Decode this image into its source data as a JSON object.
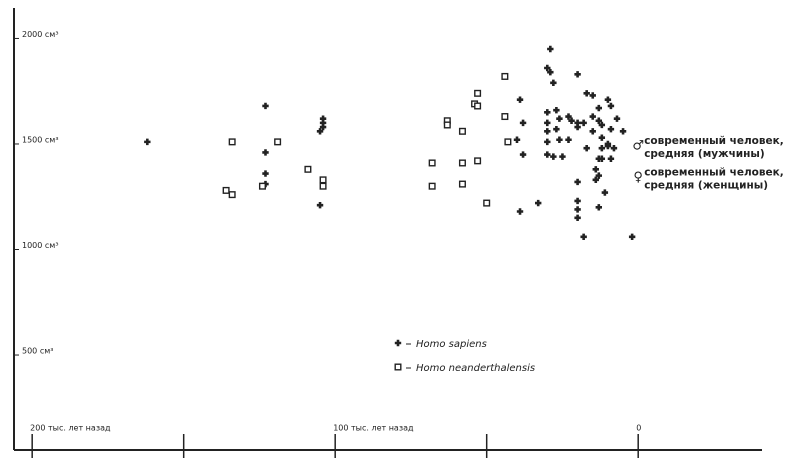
{
  "chart_data": {
    "type": "scatter",
    "xlim": [
      206,
      -40
    ],
    "ylim": [
      50,
      2140
    ],
    "xticks": [
      {
        "value": 200,
        "label": "200 тыс. лет назад"
      },
      {
        "value": 150,
        "label": null
      },
      {
        "value": 100,
        "label": "100 тыс. лет назад"
      },
      {
        "value": 50,
        "label": null
      },
      {
        "value": 0,
        "label": "0"
      }
    ],
    "yticks": [
      {
        "value": 2000,
        "label": "2000 см³"
      },
      {
        "value": 1500,
        "label": "1500 см³"
      },
      {
        "value": 1000,
        "label": "1000 см³"
      },
      {
        "value": 500,
        "label": "500 см³"
      }
    ],
    "series": [
      {
        "name": "Homo sapiens",
        "marker": "cross",
        "color": "#222222",
        "x": [
          162,
          123,
          123,
          123,
          123,
          104,
          104,
          104,
          105,
          105,
          29,
          30,
          29,
          28,
          20,
          39,
          38,
          40,
          38,
          33,
          39,
          30,
          30,
          30,
          30,
          30,
          27,
          26,
          27,
          26,
          28,
          25,
          23,
          22,
          23,
          20,
          18,
          20,
          17,
          15,
          10,
          9,
          15,
          13,
          12,
          15,
          12,
          9,
          10,
          12,
          13,
          14,
          13,
          10,
          8,
          12,
          7,
          5,
          13,
          17,
          20,
          20,
          20,
          20,
          18,
          13,
          11,
          2,
          9,
          14
        ],
        "values": [
          1510,
          1680,
          1460,
          1360,
          1310,
          1620,
          1600,
          1580,
          1560,
          1210,
          1950,
          1860,
          1840,
          1790,
          1830,
          1710,
          1600,
          1520,
          1450,
          1220,
          1180,
          1650,
          1600,
          1560,
          1510,
          1450,
          1660,
          1620,
          1570,
          1520,
          1440,
          1440,
          1630,
          1610,
          1520,
          1600,
          1600,
          1580,
          1740,
          1730,
          1710,
          1680,
          1630,
          1610,
          1590,
          1560,
          1530,
          1570,
          1500,
          1480,
          1430,
          1380,
          1350,
          1490,
          1480,
          1430,
          1620,
          1560,
          1670,
          1480,
          1320,
          1230,
          1190,
          1150,
          1060,
          1200,
          1270,
          1060,
          1430,
          1330
        ]
      },
      {
        "name": "Homo neanderthalensis",
        "marker": "square",
        "color": "#222222",
        "x": [
          134,
          119,
          136,
          134,
          124,
          109,
          104,
          104,
          68,
          68,
          63,
          63,
          58,
          58,
          58,
          53,
          54,
          53,
          53,
          50,
          44,
          44,
          43
        ],
        "values": [
          1510,
          1510,
          1280,
          1260,
          1300,
          1380,
          1330,
          1300,
          1410,
          1300,
          1610,
          1590,
          1560,
          1410,
          1310,
          1420,
          1690,
          1680,
          1740,
          1220,
          1820,
          1630,
          1510
        ]
      }
    ],
    "reference_points": [
      {
        "symbol": "♂",
        "x": 0,
        "y": 1490,
        "lines": [
          "современный человек,",
          "средняя (мужчины)"
        ]
      },
      {
        "symbol": "♀",
        "x": 0,
        "y": 1340,
        "lines": [
          "современный человек,",
          "средняя (женщины)"
        ]
      }
    ]
  }
}
